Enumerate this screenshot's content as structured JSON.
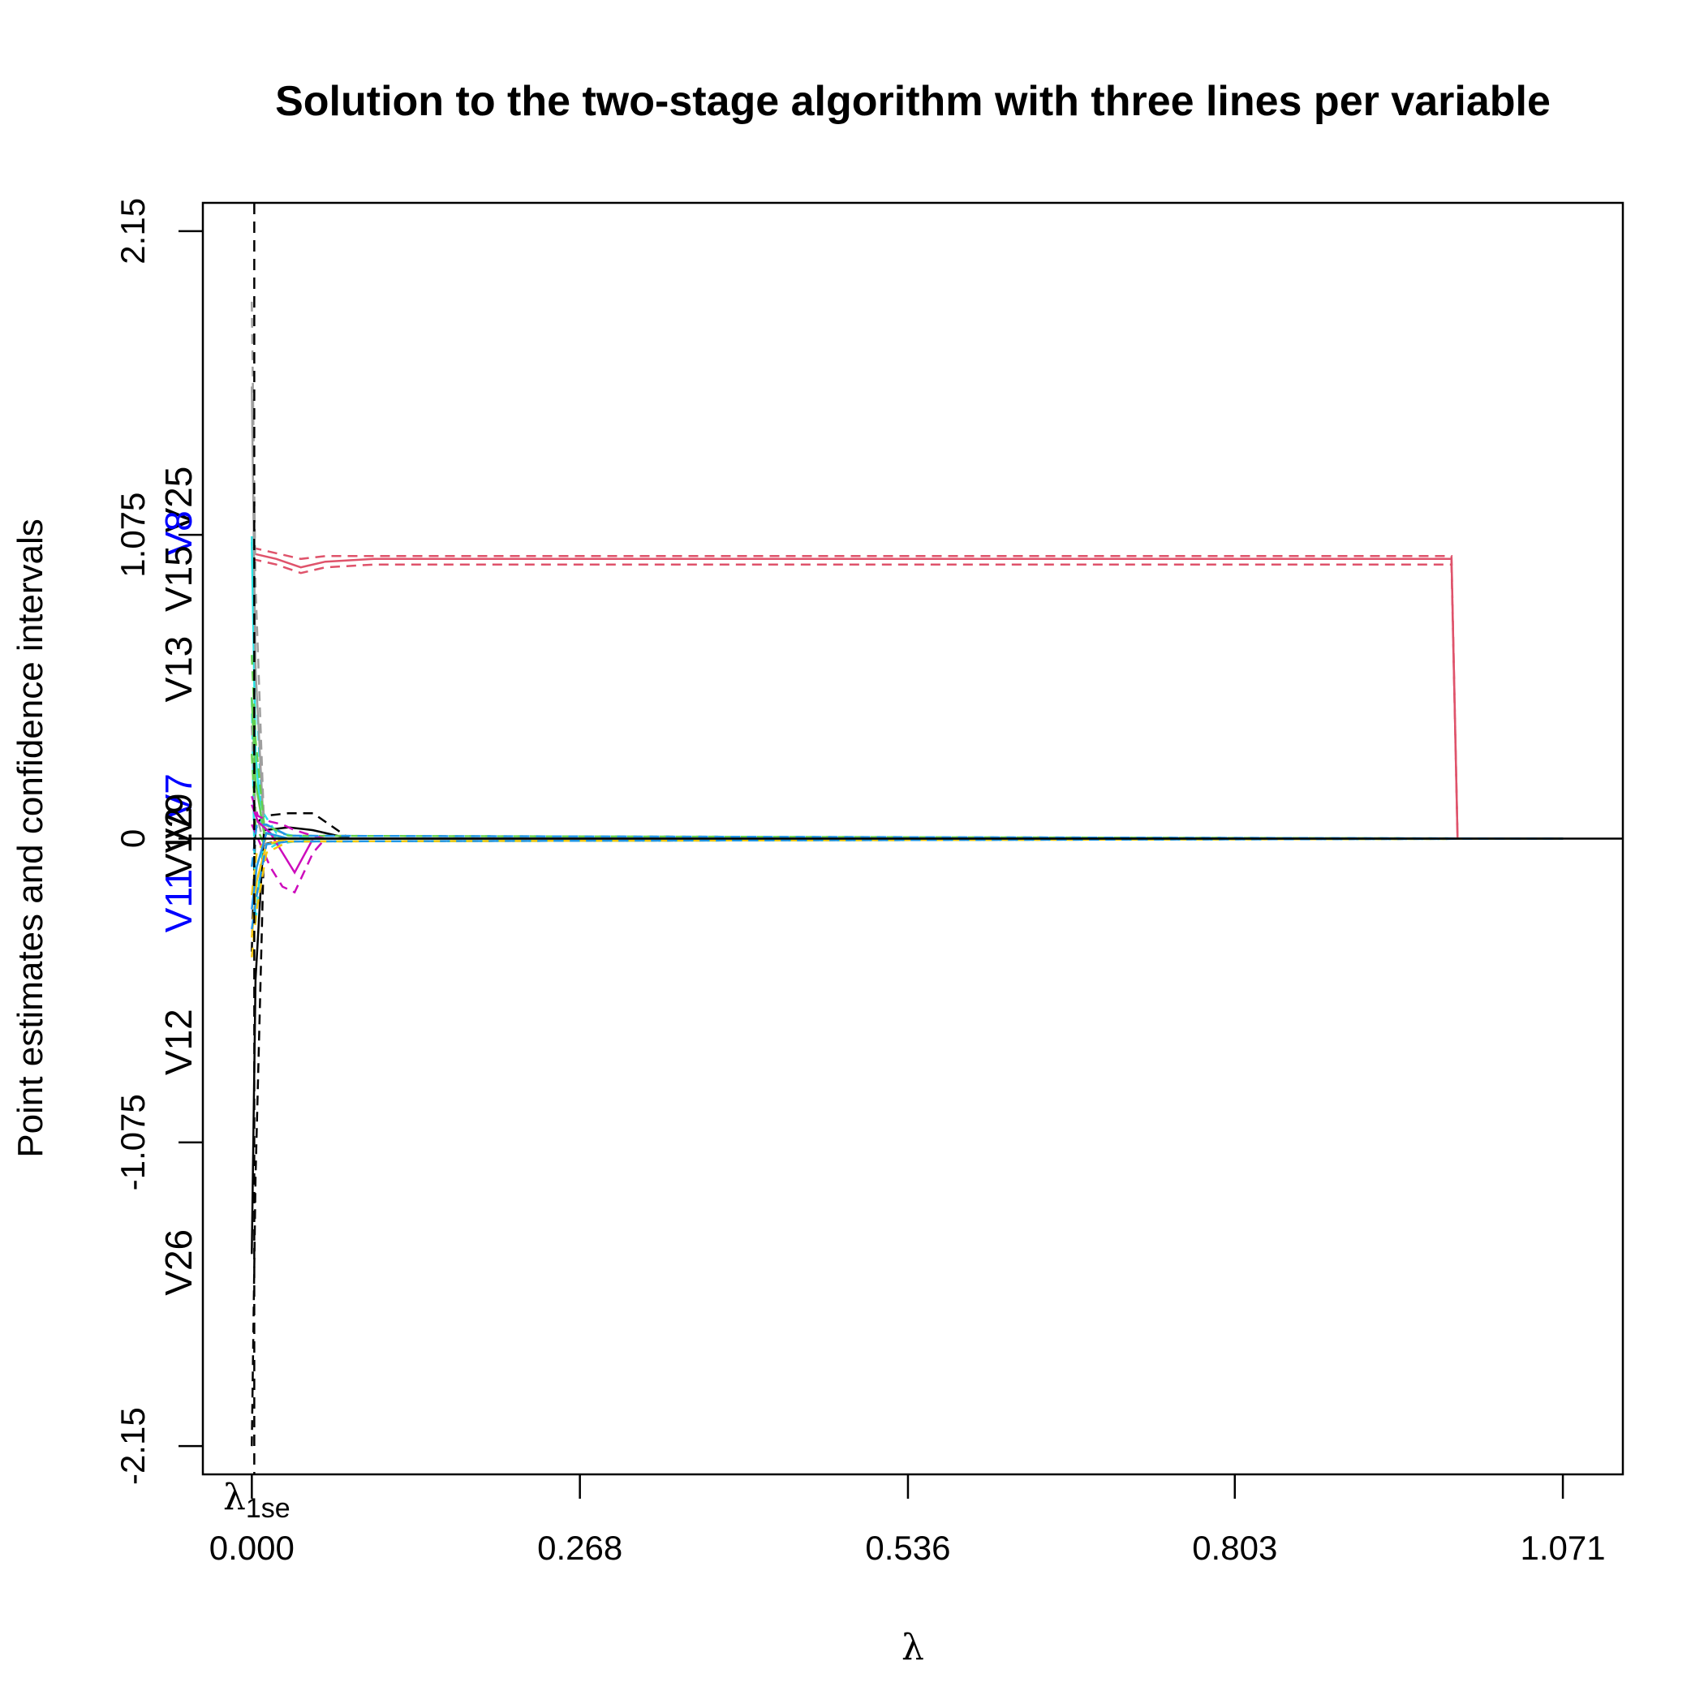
{
  "chart_data": {
    "type": "line",
    "title": "Solution to the two-stage algorithm with three lines per variable",
    "xlabel": "λ",
    "ylabel": "Point estimates and confidence intervals",
    "xlim": [
      -0.04,
      1.12
    ],
    "ylim": [
      -2.25,
      2.25
    ],
    "x_ticks": [
      "0.000",
      "0.268",
      "0.536",
      "0.803",
      "1.071"
    ],
    "x_tick_values": [
      0.0,
      0.268,
      0.536,
      0.803,
      1.071
    ],
    "y_ticks": [
      "2.15",
      "1.075",
      "0",
      "-1.075",
      "-2.15"
    ],
    "y_tick_values": [
      2.15,
      1.075,
      0,
      -1.075,
      -2.15
    ],
    "lambda_1se": {
      "label": "λ",
      "subscript": "1se",
      "value": 0.002
    },
    "left_labels": [
      {
        "text": "V25",
        "y": 1.2,
        "color": "#000000"
      },
      {
        "text": "V8",
        "y": 1.08,
        "color": "#0000ff"
      },
      {
        "text": "V15",
        "y": 0.92,
        "color": "#000000"
      },
      {
        "text": "V13",
        "y": 0.6,
        "color": "#000000"
      },
      {
        "text": "V7",
        "y": 0.15,
        "color": "#0000ff"
      },
      {
        "text": "V9",
        "y": 0.08,
        "color": "#000000"
      },
      {
        "text": "V2",
        "y": 0.03,
        "color": "#000000"
      },
      {
        "text": "V1",
        "y": -0.06,
        "color": "#000000"
      },
      {
        "text": "V11",
        "y": -0.22,
        "color": "#0000ff"
      },
      {
        "text": "V12",
        "y": -0.72,
        "color": "#000000"
      },
      {
        "text": "V26",
        "y": -1.5,
        "color": "#000000"
      }
    ],
    "series": [
      {
        "color": "#DF536B",
        "x": [
          0.0,
          0.02,
          0.04,
          0.06,
          0.1,
          0.3,
          0.6,
          0.9,
          0.98,
          0.985,
          1.071
        ],
        "estimate": [
          1.01,
          0.99,
          0.96,
          0.98,
          0.99,
          0.99,
          0.99,
          0.99,
          0.99,
          0.0,
          0.0
        ],
        "upper": [
          1.03,
          1.01,
          0.99,
          1.0,
          1.0,
          1.0,
          1.0,
          1.0,
          1.0,
          0.0,
          0.0
        ],
        "lower": [
          0.99,
          0.97,
          0.94,
          0.96,
          0.97,
          0.97,
          0.97,
          0.97,
          0.97,
          0.0,
          0.0
        ]
      },
      {
        "color": "#000000",
        "x": [
          0.0,
          0.003,
          0.01,
          0.03,
          0.05,
          0.08,
          0.3,
          0.6,
          0.97,
          0.985,
          1.071
        ],
        "estimate": [
          -1.47,
          -0.5,
          0.03,
          0.04,
          0.03,
          0.0,
          0.0,
          0.0,
          0.0,
          0.0,
          0.0
        ],
        "upper": [
          -0.4,
          0.05,
          0.08,
          0.09,
          0.09,
          0.0,
          0.0,
          0.0,
          0.0,
          0.0,
          0.0
        ],
        "lower": [
          -2.15,
          -1.2,
          -0.02,
          0.0,
          0.0,
          0.0,
          0.0,
          0.0,
          0.0,
          0.0,
          0.0
        ]
      },
      {
        "color": "#28E2E5",
        "x": [
          0.0,
          0.003,
          0.008,
          0.02,
          0.05,
          1.071
        ],
        "estimate": [
          1.05,
          0.3,
          0.05,
          0.0,
          0.0,
          0.0
        ],
        "upper": [
          1.07,
          0.6,
          0.1,
          0.02,
          0.0,
          0.0
        ],
        "lower": [
          0.5,
          -0.3,
          -0.05,
          -0.02,
          0.0,
          0.0
        ]
      },
      {
        "color": "#9E9E9E",
        "x": [
          0.0,
          0.003,
          0.01,
          0.03,
          1.071
        ],
        "estimate": [
          1.6,
          0.6,
          0.02,
          0.0,
          0.0
        ],
        "upper": [
          1.9,
          0.9,
          0.05,
          0.01,
          0.0
        ],
        "lower": [
          0.4,
          0.1,
          -0.02,
          -0.01,
          0.0
        ]
      },
      {
        "color": "#61D04F",
        "x": [
          0.0,
          0.003,
          0.01,
          0.03,
          1.071
        ],
        "estimate": [
          0.5,
          0.2,
          0.02,
          0.0,
          0.0
        ],
        "upper": [
          0.65,
          0.35,
          0.05,
          0.01,
          0.0
        ],
        "lower": [
          0.3,
          0.05,
          -0.02,
          -0.01,
          0.0
        ]
      },
      {
        "color": "#CD0BBC",
        "x": [
          0.0,
          0.005,
          0.015,
          0.025,
          0.035,
          0.05,
          0.06,
          1.071
        ],
        "estimate": [
          0.12,
          0.06,
          0.02,
          -0.05,
          -0.12,
          0.0,
          0.0,
          0.0
        ],
        "upper": [
          0.15,
          0.08,
          0.06,
          0.05,
          0.03,
          0.01,
          0.0,
          0.0
        ],
        "lower": [
          0.05,
          0.0,
          -0.1,
          -0.17,
          -0.19,
          -0.05,
          0.0,
          0.0
        ]
      },
      {
        "color": "#F5C710",
        "x": [
          0.0,
          0.004,
          0.012,
          0.03,
          1.071
        ],
        "estimate": [
          -0.35,
          -0.15,
          -0.02,
          0.0,
          0.0
        ],
        "upper": [
          -0.2,
          -0.05,
          0.0,
          0.0,
          0.0
        ],
        "lower": [
          -0.42,
          -0.25,
          -0.05,
          -0.01,
          0.0
        ]
      },
      {
        "color": "#2297E6",
        "x": [
          0.0,
          0.004,
          0.012,
          0.03,
          1.071
        ],
        "estimate": [
          -0.25,
          -0.1,
          0.02,
          0.0,
          0.0
        ],
        "upper": [
          -0.1,
          0.05,
          0.05,
          0.01,
          0.0
        ],
        "lower": [
          -0.32,
          -0.2,
          -0.02,
          -0.01,
          0.0
        ]
      }
    ]
  }
}
